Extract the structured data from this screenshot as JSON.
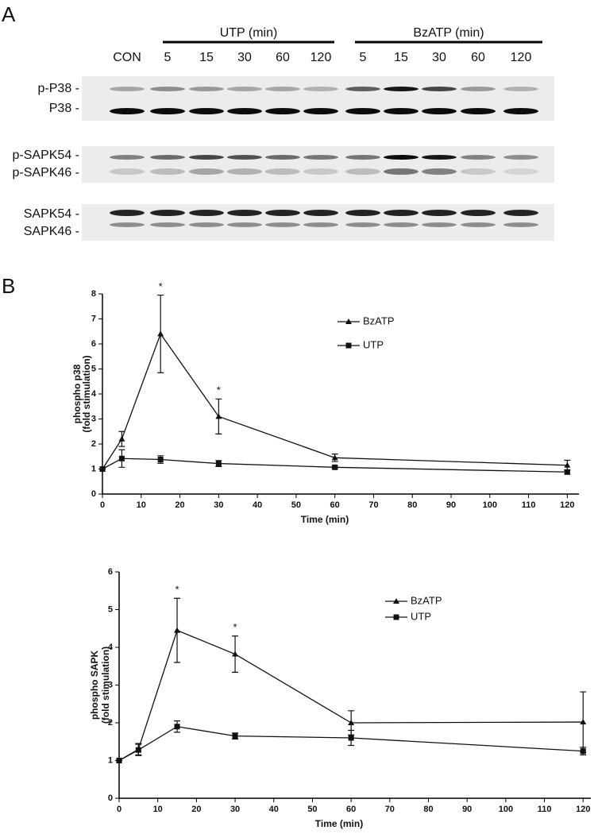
{
  "panel_labels": [
    "A",
    "B"
  ],
  "blot": {
    "groups": [
      "UTP (min)",
      "BzATP (min)"
    ],
    "lanes": [
      "CON",
      "5",
      "15",
      "30",
      "60",
      "120",
      "5",
      "15",
      "30",
      "60",
      "120"
    ],
    "rows": [
      "p-P38 -",
      "P38 -",
      "p-SAPK54 -",
      "p-SAPK46 -",
      "SAPK54 -",
      "SAPK46 -"
    ]
  },
  "chart_data": [
    {
      "type": "line",
      "y_label": [
        "phospho p38",
        "(fold stimulation)"
      ],
      "x_label": "Time (min)",
      "x": [
        0,
        5,
        15,
        30,
        60,
        120
      ],
      "series": [
        {
          "name": "BzATP",
          "color": "#111111",
          "marker": "triangle",
          "values": [
            1,
            2.2,
            6.4,
            3.1,
            1.45,
            1.15
          ],
          "errors": [
            0,
            0.3,
            1.55,
            0.7,
            0.15,
            0.2
          ]
        },
        {
          "name": "UTP",
          "color": "#111111",
          "marker": "square",
          "values": [
            1,
            1.42,
            1.38,
            1.22,
            1.07,
            0.88
          ],
          "errors": [
            0,
            0.35,
            0.15,
            0.12,
            0.05,
            0.08
          ]
        }
      ],
      "annotations": [
        {
          "text": "*",
          "x": 15
        },
        {
          "text": "*",
          "x": 30
        }
      ],
      "xlim": [
        0,
        123
      ],
      "xticks": [
        0,
        10,
        20,
        30,
        40,
        50,
        60,
        70,
        80,
        90,
        100,
        110,
        120
      ],
      "ylim": [
        0,
        8
      ],
      "yticks": [
        0,
        1,
        2,
        3,
        4,
        5,
        6,
        7,
        8
      ]
    },
    {
      "type": "line",
      "y_label": [
        "phospho SAPK",
        "(fold stimulation)"
      ],
      "x_label": "Time (min)",
      "x": [
        0,
        5,
        15,
        30,
        60,
        120
      ],
      "series": [
        {
          "name": "BzATP",
          "color": "#111111",
          "marker": "triangle",
          "values": [
            1,
            1.3,
            4.45,
            3.82,
            2.0,
            2.02
          ],
          "errors": [
            0,
            0.15,
            0.85,
            0.48,
            0.32,
            0.8
          ]
        },
        {
          "name": "UTP",
          "color": "#111111",
          "marker": "square",
          "values": [
            1,
            1.28,
            1.9,
            1.65,
            1.6,
            1.25
          ],
          "errors": [
            0,
            0.15,
            0.15,
            0.08,
            0.2,
            0.1
          ]
        }
      ],
      "annotations": [
        {
          "text": "*",
          "x": 15
        },
        {
          "text": "*",
          "x": 30
        }
      ],
      "xlim": [
        0,
        122
      ],
      "xticks": [
        0,
        10,
        20,
        30,
        40,
        50,
        60,
        70,
        80,
        90,
        100,
        110,
        120
      ],
      "ylim": [
        0,
        6
      ],
      "yticks": [
        0,
        1,
        2,
        3,
        4,
        5,
        6
      ]
    }
  ]
}
